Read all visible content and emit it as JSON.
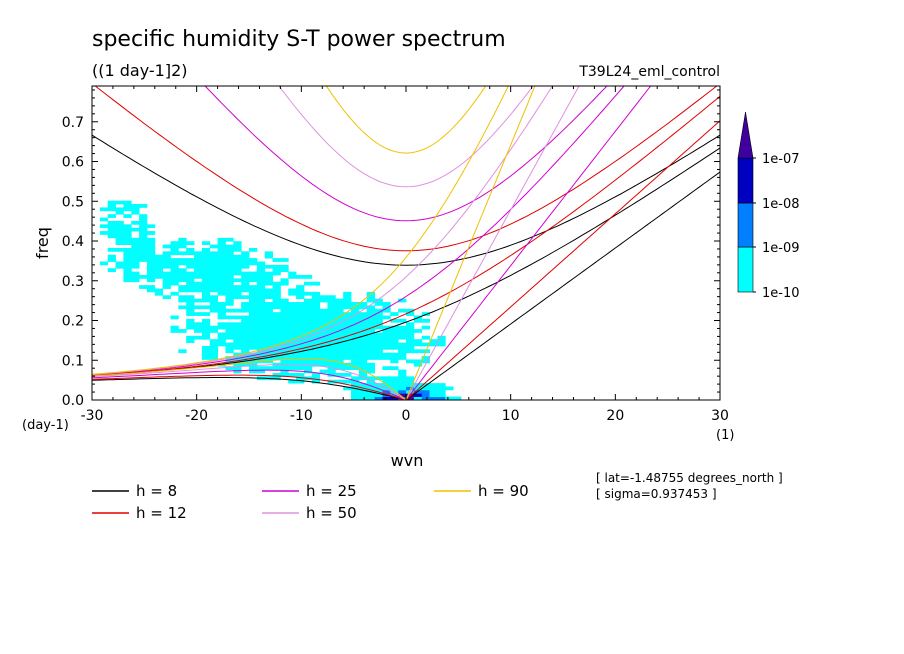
{
  "chart_data": {
    "type": "heatmap",
    "title": "specific humidity S-T power spectrum",
    "subtitle": "((1 day-1]2)",
    "run_label": "T39L24_eml_control",
    "xlabel": "wvn",
    "ylabel": "freq",
    "x_unit": "(1)",
    "y_unit": "(day-1)",
    "xlim": [
      -30,
      30
    ],
    "ylim": [
      0,
      0.79
    ],
    "xticks": [
      "-30",
      "-20",
      "-10",
      "0",
      "10",
      "20",
      "30"
    ],
    "yticks": [
      "0.0",
      "0.1",
      "0.2",
      "0.3",
      "0.4",
      "0.5",
      "0.6",
      "0.7"
    ],
    "colorbar": {
      "labels": [
        "1e-07",
        "1e-08",
        "1e-09",
        "1e-10"
      ],
      "colors": [
        "#00ffff",
        "#0080ff",
        "#0000c0",
        "#40009f"
      ]
    },
    "dispersion_curves": [
      {
        "name": "h =  8",
        "h": 8,
        "color": "#000000"
      },
      {
        "name": "h = 12",
        "h": 12,
        "color": "#e00000"
      },
      {
        "name": "h = 25",
        "h": 25,
        "color": "#d000d0"
      },
      {
        "name": "h = 50",
        "h": 50,
        "color": "#e090e0"
      },
      {
        "name": "h = 90",
        "h": 90,
        "color": "#f0c000"
      }
    ],
    "annotations": [
      "[ lat=-1.48755 degrees_north ]",
      "[ sigma=0.937453 ]"
    ]
  }
}
